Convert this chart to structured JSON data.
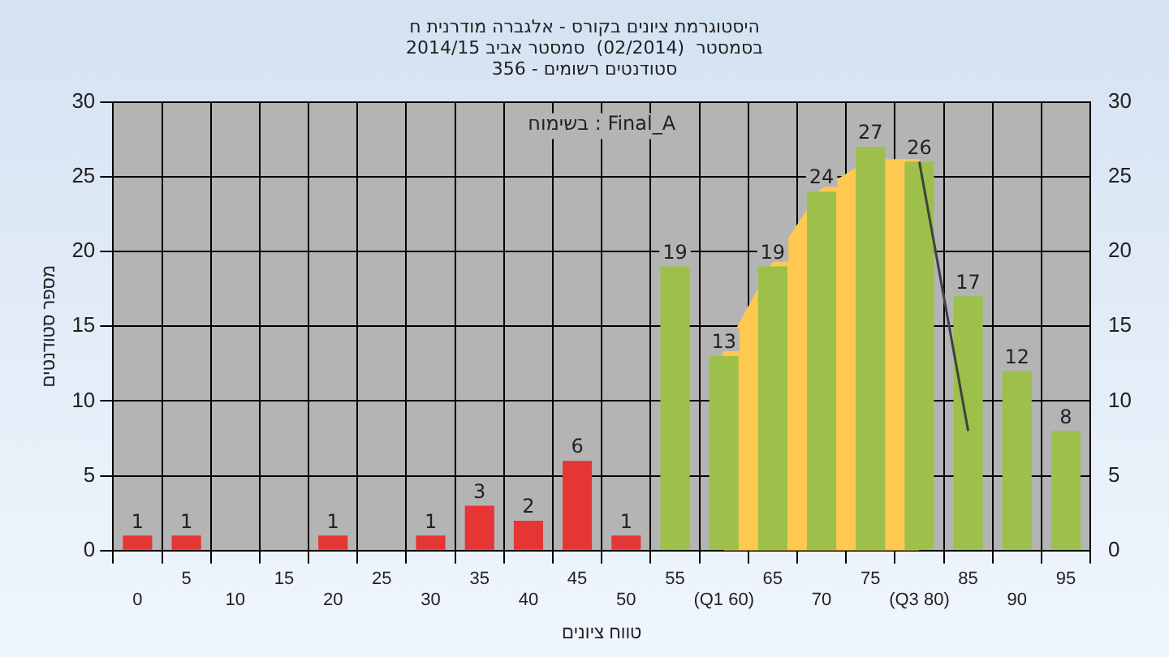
{
  "chart_data": {
    "type": "bar",
    "title": "היסטוגרמת ציונים בקורס - אלגברה מודרנית ח",
    "subtitle": "בסמסטר  (02/2014)  סמסטר אביב 2014/15\nסטודנטים רשומים - 356",
    "xlabel": "טווח ציונים",
    "ylabel": "מספר סטודנטים",
    "annotations": [
      "בשימוח : Final_A"
    ],
    "categories": [
      "0",
      "5",
      "10",
      "15",
      "20",
      "25",
      "30",
      "35",
      "40",
      "45",
      "50",
      "55",
      "(Q1 60)",
      "65",
      "70",
      "75",
      "(Q3 80)",
      "85",
      "90",
      "95"
    ],
    "series": [
      {
        "values": [
          1,
          1,
          0,
          0,
          1,
          0,
          1,
          3,
          2,
          6,
          1,
          19,
          13,
          19,
          24,
          27,
          26,
          17,
          12,
          8
        ],
        "colors": [
          "#e53535",
          "#e53535",
          "#e53535",
          "#e53535",
          "#e53535",
          "#e53535",
          "#e53535",
          "#e53535",
          "#e53535",
          "#e53535",
          "#e53535",
          "#9cc04a",
          "#9cc04a",
          "#9cc04a",
          "#9cc04a",
          "#9cc04a",
          "#9cc04a",
          "#9cc04a",
          "#9cc04a",
          "#9cc04a"
        ],
        "value_labels": [
          "1",
          "1",
          null,
          null,
          "1",
          null,
          "1",
          "3",
          "2",
          "6",
          "1",
          "19",
          "13",
          "19",
          "24",
          "27",
          "26",
          "17",
          "12",
          "8"
        ]
      },
      {
        "type": "area",
        "color": "#ffc850",
        "values": [
          null,
          null,
          null,
          null,
          null,
          null,
          null,
          null,
          null,
          null,
          null,
          null,
          13,
          19,
          24,
          26,
          26,
          null,
          null,
          null
        ]
      },
      {
        "type": "line",
        "color": "#404040",
        "values": [
          null,
          null,
          null,
          null,
          null,
          null,
          null,
          null,
          null,
          null,
          null,
          null,
          null,
          null,
          null,
          null,
          26,
          8,
          null,
          null
        ]
      }
    ],
    "ylim": [
      0,
      30
    ],
    "yticks": [
      0,
      5,
      10,
      15,
      20,
      25,
      30
    ],
    "y2lim": [
      0,
      30
    ],
    "y2ticks": [
      0,
      5,
      10,
      15,
      20,
      25,
      30
    ],
    "grid": true,
    "legend": false
  }
}
